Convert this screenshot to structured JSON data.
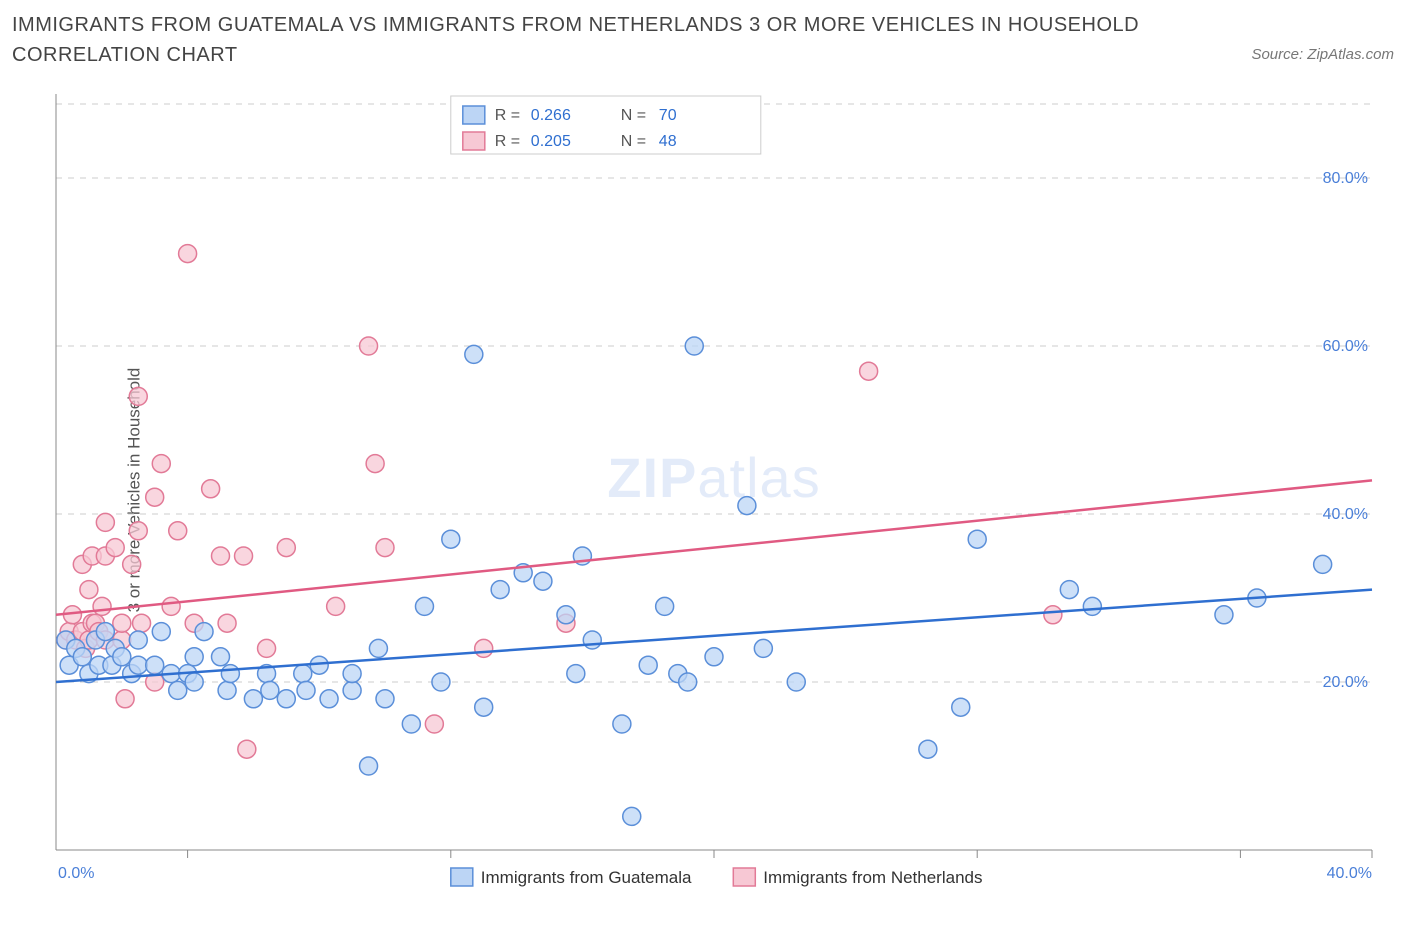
{
  "title": "IMMIGRANTS FROM GUATEMALA VS IMMIGRANTS FROM NETHERLANDS 3 OR MORE VEHICLES IN HOUSEHOLD CORRELATION CHART",
  "source_label": "Source: ZipAtlas.com",
  "ylabel": "3 or more Vehicles in Household",
  "watermark_zip": "ZIP",
  "watermark_atlas": "atlas",
  "chart": {
    "type": "scatter",
    "xlim": [
      0,
      40
    ],
    "ylim": [
      0,
      90
    ],
    "y_ticks": [
      20,
      40,
      60,
      80
    ],
    "y_tick_labels": [
      "20.0%",
      "40.0%",
      "60.0%",
      "80.0%"
    ],
    "x_tick_labels": {
      "left": "0.0%",
      "right": "40.0%"
    },
    "x_minor_tick_positions": [
      4,
      12,
      20,
      28,
      36
    ],
    "grid_color": "#cccccc",
    "background_color": "#ffffff",
    "axis_color": "#888888",
    "series": [
      {
        "name": "Immigrants from Guatemala",
        "color_fill": "#bcd5f5",
        "color_stroke": "#5b8fd9",
        "trend_line_color": "#2f6fd0",
        "trend": {
          "x1": 0,
          "y1": 20,
          "x2": 40,
          "y2": 31
        },
        "R_label": "R =",
        "R_value": "0.266",
        "N_label": "N =",
        "N_value": "70",
        "marker_radius": 9,
        "points": [
          [
            0.3,
            25
          ],
          [
            0.4,
            22
          ],
          [
            0.6,
            24
          ],
          [
            0.8,
            23
          ],
          [
            1.0,
            21
          ],
          [
            1.2,
            25
          ],
          [
            1.3,
            22
          ],
          [
            1.5,
            26
          ],
          [
            1.7,
            22
          ],
          [
            1.8,
            24
          ],
          [
            2.0,
            23
          ],
          [
            2.3,
            21
          ],
          [
            2.5,
            25
          ],
          [
            2.5,
            22
          ],
          [
            3.0,
            22
          ],
          [
            3.2,
            26
          ],
          [
            3.5,
            21
          ],
          [
            3.7,
            19
          ],
          [
            4.0,
            21
          ],
          [
            4.2,
            23
          ],
          [
            4.2,
            20
          ],
          [
            4.5,
            26
          ],
          [
            5.0,
            23
          ],
          [
            5.2,
            19
          ],
          [
            5.3,
            21
          ],
          [
            6.0,
            18
          ],
          [
            6.4,
            21
          ],
          [
            6.5,
            19
          ],
          [
            7.0,
            18
          ],
          [
            7.5,
            21
          ],
          [
            7.6,
            19
          ],
          [
            8.0,
            22
          ],
          [
            8.3,
            18
          ],
          [
            9.0,
            19
          ],
          [
            9.0,
            21
          ],
          [
            9.5,
            10
          ],
          [
            9.8,
            24
          ],
          [
            10.0,
            18
          ],
          [
            10.8,
            15
          ],
          [
            11.2,
            29
          ],
          [
            11.7,
            20
          ],
          [
            12.0,
            37
          ],
          [
            12.7,
            59
          ],
          [
            13.0,
            17
          ],
          [
            13.5,
            31
          ],
          [
            14.2,
            33
          ],
          [
            14.8,
            32
          ],
          [
            15.5,
            28
          ],
          [
            15.8,
            21
          ],
          [
            16.0,
            35
          ],
          [
            16.3,
            25
          ],
          [
            17.2,
            15
          ],
          [
            17.5,
            4
          ],
          [
            18.0,
            22
          ],
          [
            18.5,
            29
          ],
          [
            18.9,
            21
          ],
          [
            19.2,
            20
          ],
          [
            19.4,
            60
          ],
          [
            20.0,
            23
          ],
          [
            21.0,
            41
          ],
          [
            21.5,
            24
          ],
          [
            26.5,
            12
          ],
          [
            27.5,
            17
          ],
          [
            28.0,
            37
          ],
          [
            30.8,
            31
          ],
          [
            31.5,
            29
          ],
          [
            35.5,
            28
          ],
          [
            36.5,
            30
          ],
          [
            38.5,
            34
          ],
          [
            22.5,
            20
          ]
        ]
      },
      {
        "name": "Immigrants from Netherlands",
        "color_fill": "#f7c8d4",
        "color_stroke": "#e27a97",
        "trend_line_color": "#e05a82",
        "trend": {
          "x1": 0,
          "y1": 28,
          "x2": 40,
          "y2": 44
        },
        "R_label": "R =",
        "R_value": "0.205",
        "N_label": "N =",
        "N_value": "48",
        "marker_radius": 9,
        "points": [
          [
            0.3,
            25
          ],
          [
            0.4,
            26
          ],
          [
            0.5,
            28
          ],
          [
            0.6,
            25
          ],
          [
            0.8,
            26
          ],
          [
            0.8,
            34
          ],
          [
            0.9,
            24
          ],
          [
            1.0,
            25
          ],
          [
            1.0,
            31
          ],
          [
            1.1,
            27
          ],
          [
            1.1,
            35
          ],
          [
            1.2,
            27
          ],
          [
            1.3,
            26
          ],
          [
            1.4,
            29
          ],
          [
            1.5,
            25
          ],
          [
            1.5,
            39
          ],
          [
            1.5,
            35
          ],
          [
            1.8,
            36
          ],
          [
            2.0,
            25
          ],
          [
            2.0,
            27
          ],
          [
            2.1,
            18
          ],
          [
            2.3,
            34
          ],
          [
            2.5,
            54
          ],
          [
            2.5,
            38
          ],
          [
            2.6,
            27
          ],
          [
            3.0,
            20
          ],
          [
            3.0,
            42
          ],
          [
            3.2,
            46
          ],
          [
            3.5,
            29
          ],
          [
            3.7,
            38
          ],
          [
            4.0,
            71
          ],
          [
            4.2,
            27
          ],
          [
            4.7,
            43
          ],
          [
            5.0,
            35
          ],
          [
            5.2,
            27
          ],
          [
            5.7,
            35
          ],
          [
            5.8,
            12
          ],
          [
            6.4,
            24
          ],
          [
            7.0,
            36
          ],
          [
            8.5,
            29
          ],
          [
            9.5,
            60
          ],
          [
            9.7,
            46
          ],
          [
            10.0,
            36
          ],
          [
            11.5,
            15
          ],
          [
            13.0,
            24
          ],
          [
            15.5,
            27
          ],
          [
            24.7,
            57
          ],
          [
            30.3,
            28
          ]
        ]
      }
    ]
  },
  "legend_top_bg": "#ffffff",
  "legend_top_border": "#cccccc",
  "legend_label_color": "#555555",
  "legend_value_color": "#2f6fd0",
  "bottom_legend": [
    {
      "label": "Immigrants from Guatemala",
      "fill": "#bcd5f5",
      "stroke": "#5b8fd9"
    },
    {
      "label": "Immigrants from Netherlands",
      "fill": "#f7c8d4",
      "stroke": "#e27a97"
    }
  ]
}
